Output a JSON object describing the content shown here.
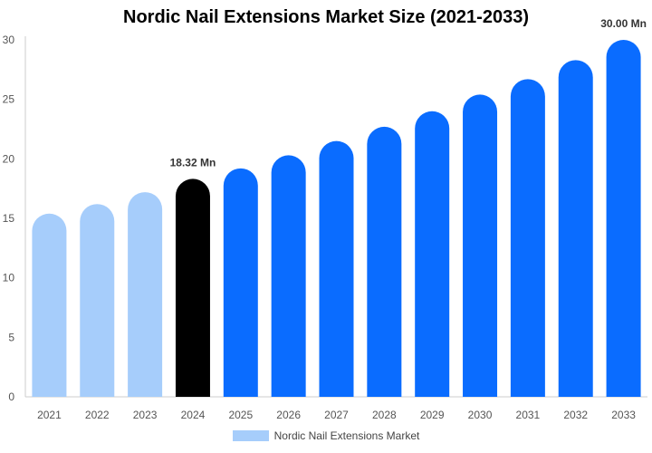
{
  "chart_data": {
    "type": "bar",
    "title": "Nordic Nail Extensions Market Size (2021-2033)",
    "categories": [
      "2021",
      "2022",
      "2023",
      "2024",
      "2025",
      "2026",
      "2027",
      "2028",
      "2029",
      "2030",
      "2031",
      "2032",
      "2033"
    ],
    "series": [
      {
        "name": "Nordic Nail Extensions Market",
        "values": [
          15.4,
          16.2,
          17.2,
          18.32,
          19.2,
          20.3,
          21.5,
          22.7,
          24.0,
          25.4,
          26.7,
          28.3,
          30.0
        ]
      }
    ],
    "ylim": [
      0,
      30
    ],
    "yticks": [
      0,
      5,
      10,
      15,
      20,
      25,
      30
    ],
    "grid": false,
    "legend_position": "bottom",
    "annotations": [
      {
        "category": "2024",
        "label": "18.32 Mn"
      },
      {
        "category": "2033",
        "label": "30.00 Mn"
      }
    ],
    "colors": {
      "historical": "#a6cdfb",
      "current": "#000000",
      "forecast": "#0a6cff",
      "axis": "#cccccc",
      "tick_text": "#555555"
    },
    "bar_segments": {
      "historical": [
        "2021",
        "2022",
        "2023"
      ],
      "current": [
        "2024"
      ],
      "forecast": [
        "2025",
        "2026",
        "2027",
        "2028",
        "2029",
        "2030",
        "2031",
        "2032",
        "2033"
      ]
    }
  }
}
